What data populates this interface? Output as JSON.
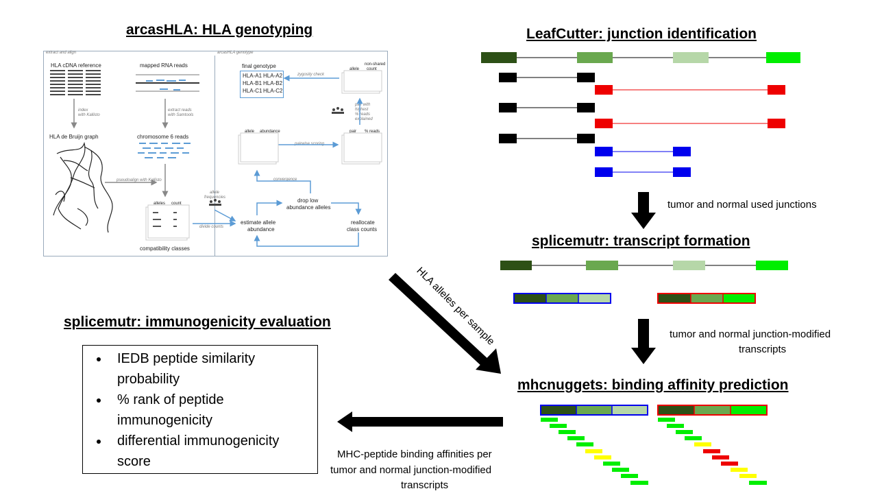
{
  "titles": {
    "arcas": "arcasHLA: HLA genotyping",
    "leafcutter": "LeafCutter: junction identification",
    "splice_transcript": "splicemutr: transcript formation",
    "immuno": "splicemutr: immunogenicity evaluation",
    "mhc": "mhcnuggets: binding affinity prediction"
  },
  "arrow_labels": {
    "used_junctions": "tumor and normal used junctions",
    "modified_line1": "tumor and normal junction-modified",
    "modified_line2": "transcripts",
    "hla_alleles": "HLA alleles per sample",
    "mhc_line1": "MHC-peptide binding affinities per",
    "mhc_line2": "tumor and normal junction-modified",
    "mhc_line3": "transcripts"
  },
  "bullets": [
    "IEDB peptide similarity probability",
    "% rank of peptide immunogenicity",
    "differential immunogenicity score"
  ],
  "arcas_panel": {
    "section_left": "extract and align",
    "section_right": "arcasHLA genotype",
    "cdna_ref": "HLA cDNA reference",
    "mapped_reads": "mapped RNA reads",
    "index": "index",
    "with_kallisto": "with Kallisto",
    "extract_reads": "extract reads",
    "with_samtools": "with Samtools",
    "de_bruijn": "HLA de Bruijn graph",
    "chr6": "chromosome 6 reads",
    "pseudoalign": "pseudoalign with Kallisto",
    "compat": "compatibility classes",
    "alleles_hdr": "alleles",
    "count_hdr": "count",
    "allele_freq_1": "allele",
    "allele_freq_2": "frequencies",
    "divide_counts": "divide counts",
    "estimate_1": "estimate allele",
    "estimate_2": "abundance",
    "drop_1": "drop low",
    "drop_2": "abundance alleles",
    "realloc_1": "reallocate",
    "realloc_2": "class counts",
    "convergence": "convergence",
    "pairwise": "pairwise scoring",
    "allele_hdr": "allele",
    "abundance_hdr": "abundance",
    "pair_hdr": "pair",
    "pct_reads_hdr": "% reads",
    "final_genotype": "final genotype",
    "zygosity": "zygosity check",
    "non_shared_1": "non-shared",
    "non_shared_2": "count",
    "pair_with_1": "pair with",
    "pair_with_2": "highest",
    "pair_with_3": "% reads",
    "pair_with_4": "explained",
    "geno": [
      "HLA-A1",
      "HLA-A2",
      "HLA-B1",
      "HLA-B2",
      "HLA-C1",
      "HLA-C2"
    ]
  },
  "colors": {
    "dark_green": "#2d5016",
    "mid_green": "#6aa84f",
    "light_green": "#b6d7a8",
    "bright_green": "#00ee00",
    "red": "#ee0000",
    "blue": "#0000ee",
    "yellow": "#ffff00",
    "panel_blue": "#5b9bd5"
  }
}
